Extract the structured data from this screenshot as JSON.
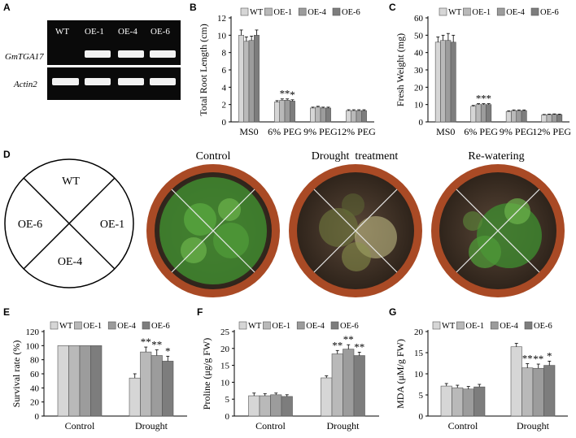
{
  "panel_letters": {
    "a": "A",
    "b": "B",
    "c": "C",
    "d": "D",
    "e": "E",
    "f": "F",
    "g": "G"
  },
  "gel": {
    "lanes": [
      "WT",
      "OE-1",
      "OE-4",
      "OE-6"
    ],
    "rows": [
      "GmTGA17",
      "Actin2"
    ],
    "bands": {
      "GmTGA17": [
        0,
        1,
        1,
        1
      ],
      "Actin2": [
        1,
        1,
        1,
        1
      ]
    }
  },
  "layout_diagram": {
    "sectors": {
      "top": "WT",
      "right": "OE-1",
      "bottom": "OE-4",
      "left": "OE-6"
    }
  },
  "photos": {
    "titles": [
      "Control",
      "Drought  treatment",
      "Re-watering"
    ]
  },
  "colors": {
    "WT": "#d6d6d6",
    "OE-1": "#b9b9b9",
    "OE-4": "#9c9c9c",
    "OE-6": "#7d7d7d",
    "gel_bg": "#0a0a0a",
    "band": "#f2f2f2",
    "pot": "#b5532b",
    "soil": "#4a3b2e",
    "plant": "#3f8a2f"
  },
  "chart_data": [
    {
      "id": "B",
      "type": "bar",
      "ylabel": "Total Root Length (cm)",
      "ylim": [
        0,
        12
      ],
      "yticks": [
        0,
        2,
        4,
        6,
        8,
        10,
        12
      ],
      "categories": [
        "MS0",
        "6% PEG",
        "9% PEG",
        "12% PEG"
      ],
      "series": [
        {
          "name": "WT",
          "values": [
            10.0,
            2.3,
            1.6,
            1.3
          ],
          "errors": [
            0.6,
            0.15,
            0.1,
            0.1
          ]
        },
        {
          "name": "OE-1",
          "values": [
            9.3,
            2.5,
            1.7,
            1.3
          ],
          "errors": [
            0.5,
            0.15,
            0.1,
            0.1
          ]
        },
        {
          "name": "OE-4",
          "values": [
            9.4,
            2.5,
            1.6,
            1.3
          ],
          "errors": [
            0.5,
            0.15,
            0.1,
            0.1
          ]
        },
        {
          "name": "OE-6",
          "values": [
            10.0,
            2.4,
            1.6,
            1.3
          ],
          "errors": [
            0.6,
            0.15,
            0.1,
            0.1
          ]
        }
      ],
      "annotations": [
        {
          "category": 1,
          "series": 1,
          "text": "*"
        },
        {
          "category": 1,
          "series": 2,
          "text": "*"
        },
        {
          "category": 1,
          "series": 3,
          "text": "*"
        }
      ],
      "legend": "top"
    },
    {
      "id": "C",
      "type": "bar",
      "ylabel": "Fresh Weight (mg)",
      "ylim": [
        0,
        60
      ],
      "yticks": [
        0,
        10,
        20,
        30,
        40,
        50,
        60
      ],
      "categories": [
        "MS0",
        "6% PEG",
        "9% PEG",
        "12% PEG"
      ],
      "series": [
        {
          "name": "WT",
          "values": [
            46,
            9,
            6,
            4
          ],
          "errors": [
            3,
            0.5,
            0.4,
            0.3
          ]
        },
        {
          "name": "OE-1",
          "values": [
            47,
            10,
            6.5,
            4.2
          ],
          "errors": [
            3,
            0.5,
            0.4,
            0.3
          ]
        },
        {
          "name": "OE-4",
          "values": [
            47,
            10,
            6.5,
            4.3
          ],
          "errors": [
            4,
            0.5,
            0.4,
            0.3
          ]
        },
        {
          "name": "OE-6",
          "values": [
            46,
            10,
            6.5,
            4.2
          ],
          "errors": [
            4,
            0.5,
            0.4,
            0.3
          ]
        }
      ],
      "annotations": [
        {
          "category": 1,
          "series": 1,
          "text": "*"
        },
        {
          "category": 1,
          "series": 2,
          "text": "*"
        },
        {
          "category": 1,
          "series": 3,
          "text": "*"
        }
      ],
      "legend": "top"
    },
    {
      "id": "E",
      "type": "bar",
      "ylabel": "Survival rate (%)",
      "ylim": [
        0,
        120
      ],
      "yticks": [
        0,
        20,
        40,
        60,
        80,
        100,
        120
      ],
      "categories": [
        "Control",
        "Drought"
      ],
      "series": [
        {
          "name": "WT",
          "values": [
            100,
            54
          ],
          "errors": [
            0,
            6
          ]
        },
        {
          "name": "OE-1",
          "values": [
            100,
            91
          ],
          "errors": [
            0,
            7
          ]
        },
        {
          "name": "OE-4",
          "values": [
            100,
            86
          ],
          "errors": [
            0,
            8
          ]
        },
        {
          "name": "OE-6",
          "values": [
            100,
            78
          ],
          "errors": [
            0,
            7
          ]
        }
      ],
      "annotations": [
        {
          "category": 1,
          "series": 1,
          "text": "**"
        },
        {
          "category": 1,
          "series": 2,
          "text": "**"
        },
        {
          "category": 1,
          "series": 3,
          "text": "*"
        }
      ],
      "legend": "top"
    },
    {
      "id": "F",
      "type": "bar",
      "ylabel": "Proline (μg/g FW)",
      "ylim": [
        0,
        25
      ],
      "yticks": [
        0,
        5,
        10,
        15,
        20,
        25
      ],
      "categories": [
        "Control",
        "Drought"
      ],
      "series": [
        {
          "name": "WT",
          "values": [
            6.0,
            11.3
          ],
          "errors": [
            0.8,
            0.6
          ]
        },
        {
          "name": "OE-1",
          "values": [
            6.0,
            18.4
          ],
          "errors": [
            0.6,
            1.0
          ]
        },
        {
          "name": "OE-4",
          "values": [
            6.3,
            19.8
          ],
          "errors": [
            0.5,
            1.3
          ]
        },
        {
          "name": "OE-6",
          "values": [
            5.8,
            17.9
          ],
          "errors": [
            0.5,
            1.0
          ]
        }
      ],
      "annotations": [
        {
          "category": 1,
          "series": 1,
          "text": "**"
        },
        {
          "category": 1,
          "series": 2,
          "text": "**"
        },
        {
          "category": 1,
          "series": 3,
          "text": "**"
        }
      ],
      "legend": "top"
    },
    {
      "id": "G",
      "type": "bar",
      "ylabel": "MDA (μM/g FW)",
      "ylim": [
        0,
        20
      ],
      "yticks": [
        0,
        5,
        10,
        15,
        20
      ],
      "categories": [
        "Control",
        "Drought"
      ],
      "series": [
        {
          "name": "WT",
          "values": [
            7.1,
            16.4
          ],
          "errors": [
            0.6,
            0.8
          ]
        },
        {
          "name": "OE-1",
          "values": [
            6.7,
            11.4
          ],
          "errors": [
            0.6,
            1.0
          ]
        },
        {
          "name": "OE-4",
          "values": [
            6.4,
            11.3
          ],
          "errors": [
            0.6,
            1.0
          ]
        },
        {
          "name": "OE-6",
          "values": [
            6.9,
            12.0
          ],
          "errors": [
            0.6,
            1.0
          ]
        }
      ],
      "annotations": [
        {
          "category": 1,
          "series": 1,
          "text": "**"
        },
        {
          "category": 1,
          "series": 2,
          "text": "**"
        },
        {
          "category": 1,
          "series": 3,
          "text": "*"
        }
      ],
      "legend": "top"
    }
  ]
}
